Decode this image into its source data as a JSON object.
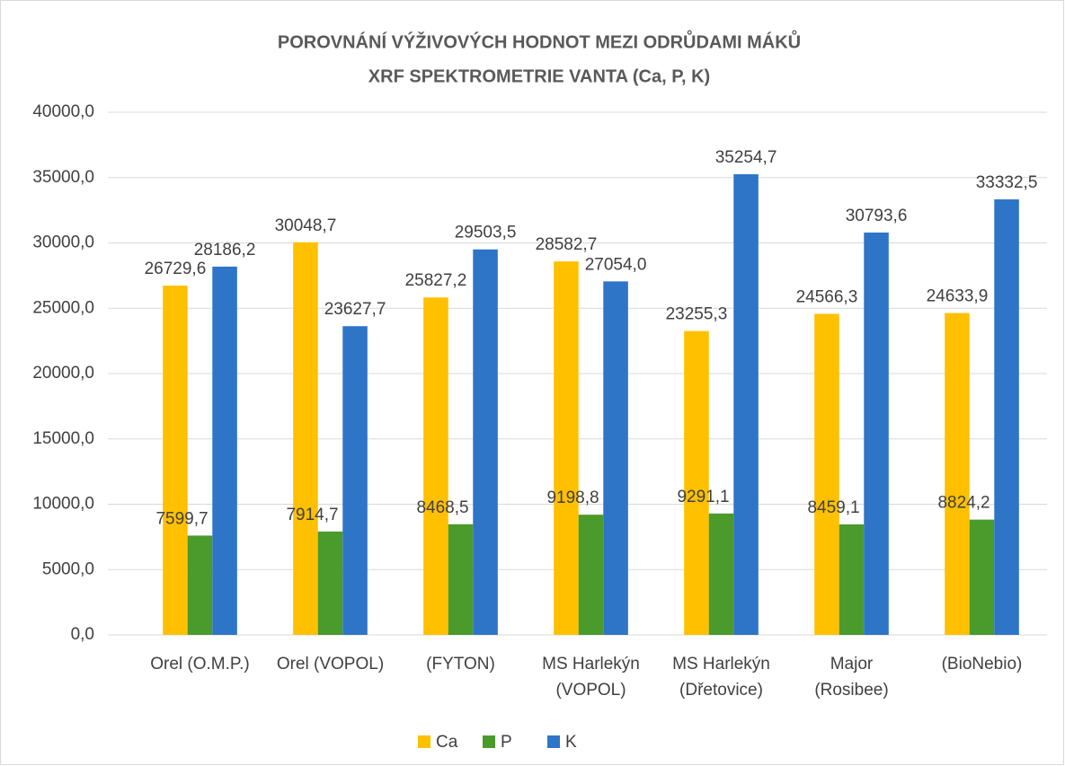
{
  "chart_data": {
    "type": "bar",
    "title": "POROVNÁNÍ VÝŽIVOVÝCH HODNOT MEZI ODRŮDAMI MÁKŮ",
    "subtitle": "XRF SPEKTROMETRIE VANTA (Ca, P, K)",
    "categories": [
      [
        "Orel (O.M.P.)"
      ],
      [
        "Orel (VOPOL)"
      ],
      [
        "(FYTON)"
      ],
      [
        "MS Harlekýn",
        "(VOPOL)"
      ],
      [
        "MS Harlekýn",
        "(Dřetovice)"
      ],
      [
        "Major",
        "(Rosibee)"
      ],
      [
        "(BioNebio)"
      ]
    ],
    "series": [
      {
        "name": "Ca",
        "color": "#ffc000",
        "values": [
          26729.6,
          30048.7,
          25827.2,
          28582.7,
          23255.3,
          24566.3,
          24633.9
        ],
        "value_labels": [
          "26729,6",
          "30048,7",
          "25827,2",
          "28582,7",
          "23255,3",
          "24566,3",
          "24633,9"
        ]
      },
      {
        "name": "P",
        "color": "#4b9a2c",
        "values": [
          7599.7,
          7914.7,
          8468.5,
          9198.8,
          9291.1,
          8459.1,
          8824.2
        ],
        "value_labels": [
          "7599,7",
          "7914,7",
          "8468,5",
          "9198,8",
          "9291,1",
          "8459,1",
          "8824,2"
        ]
      },
      {
        "name": "K",
        "color": "#2e75c8",
        "values": [
          28186.2,
          23627.7,
          29503.5,
          27054.0,
          35254.7,
          30793.6,
          33332.5
        ],
        "value_labels": [
          "28186,2",
          "23627,7",
          "29503,5",
          "27054,0",
          "35254,7",
          "30793,6",
          "33332,5"
        ]
      }
    ],
    "ylim": [
      0,
      40000
    ],
    "yticks": [
      {
        "value": 0,
        "label": "0,0"
      },
      {
        "value": 5000,
        "label": "5000,0"
      },
      {
        "value": 10000,
        "label": "10000,0"
      },
      {
        "value": 15000,
        "label": "15000,0"
      },
      {
        "value": 20000,
        "label": "20000,0"
      },
      {
        "value": 25000,
        "label": "25000,0"
      },
      {
        "value": 30000,
        "label": "30000,0"
      },
      {
        "value": 35000,
        "label": "35000,0"
      },
      {
        "value": 40000,
        "label": "40000,0"
      }
    ],
    "grid": true,
    "legend": "bottom"
  }
}
